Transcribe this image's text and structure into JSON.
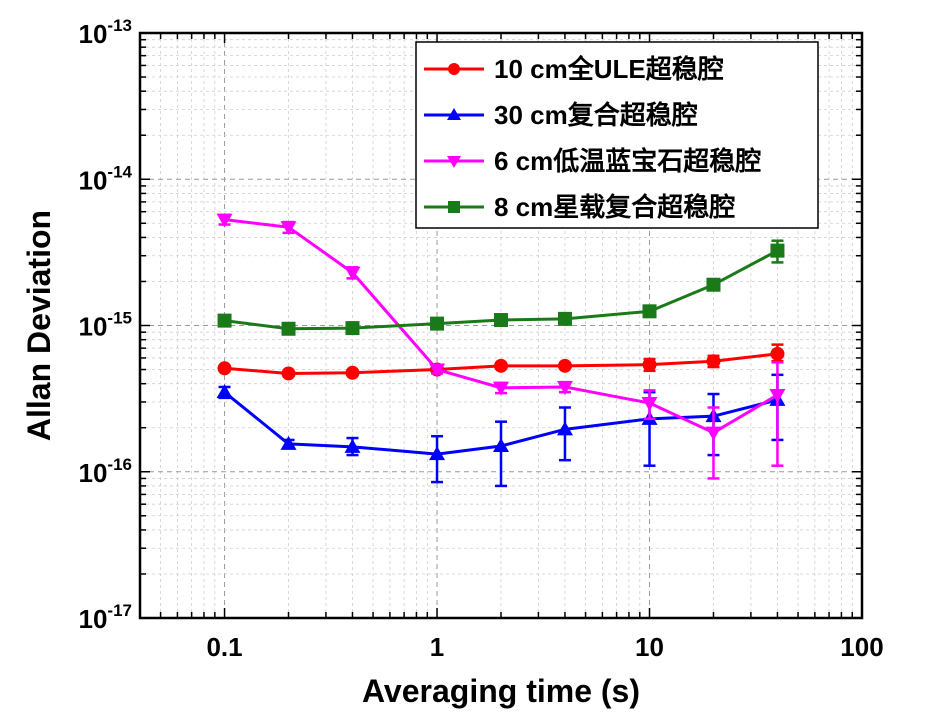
{
  "chart_data": {
    "type": "line",
    "xlabel": "Averaging time (s)",
    "ylabel": "Allan Deviation",
    "xscale": "log",
    "yscale": "log",
    "xlim": [
      0.04,
      100
    ],
    "ylim": [
      1e-17,
      1e-13
    ],
    "grid": true,
    "legend_position": "top-right",
    "x_ticks": [
      {
        "value": 0.1,
        "label": "0.1"
      },
      {
        "value": 1,
        "label": "1"
      },
      {
        "value": 10,
        "label": "10"
      },
      {
        "value": 100,
        "label": "100"
      }
    ],
    "y_ticks": [
      {
        "value": 1e-17,
        "base": "10",
        "exp": "-17"
      },
      {
        "value": 1e-16,
        "base": "10",
        "exp": "-16"
      },
      {
        "value": 1e-15,
        "base": "10",
        "exp": "-15"
      },
      {
        "value": 1e-14,
        "base": "10",
        "exp": "-14"
      },
      {
        "value": 1e-13,
        "base": "10",
        "exp": "-13"
      }
    ],
    "series": [
      {
        "name": "10 cm全ULE超稳腔",
        "color": "#ff0000",
        "marker": "circle",
        "x": [
          0.1,
          0.2,
          0.4,
          1,
          2,
          4,
          10,
          20,
          40
        ],
        "y": [
          5.1e-16,
          4.7e-16,
          4.75e-16,
          5e-16,
          5.3e-16,
          5.3e-16,
          5.4e-16,
          5.7e-16,
          6.4e-16
        ],
        "err_low": [
          5e-16,
          4.6e-16,
          4.65e-16,
          4.9e-16,
          5.1e-16,
          5.1e-16,
          4.9e-16,
          5.2e-16,
          5.7e-16
        ],
        "err_high": [
          5.2e-16,
          4.8e-16,
          4.85e-16,
          5.1e-16,
          5.5e-16,
          5.5e-16,
          5.9e-16,
          6.2e-16,
          7.4e-16
        ]
      },
      {
        "name": "30 cm复合超稳腔",
        "color": "#0000ff",
        "marker": "triangle-up",
        "x": [
          0.1,
          0.2,
          0.4,
          1,
          2,
          4,
          10,
          20,
          40
        ],
        "y": [
          3.5e-16,
          1.55e-16,
          1.48e-16,
          1.32e-16,
          1.5e-16,
          1.95e-16,
          2.3e-16,
          2.4e-16,
          3.1e-16
        ],
        "err_low": [
          3.2e-16,
          1.45e-16,
          1.3e-16,
          8.5e-17,
          8e-17,
          1.2e-16,
          1.1e-16,
          1.3e-16,
          1.65e-16
        ],
        "err_high": [
          3.8e-16,
          1.65e-16,
          1.7e-16,
          1.75e-16,
          2.2e-16,
          2.75e-16,
          3.5e-16,
          3.4e-16,
          4.6e-16
        ]
      },
      {
        "name": "6 cm低温蓝宝石超稳腔",
        "color": "#ff00ff",
        "marker": "triangle-down",
        "x": [
          0.1,
          0.2,
          0.4,
          1,
          2,
          4,
          10,
          20,
          40
        ],
        "y": [
          5.3e-15,
          4.7e-15,
          2.3e-15,
          5e-16,
          3.75e-16,
          3.8e-16,
          2.95e-16,
          1.85e-16,
          3.35e-16
        ],
        "err_low": [
          4.9e-15,
          4.3e-15,
          2.1e-15,
          4.7e-16,
          3.45e-16,
          3.5e-16,
          2.3e-16,
          9e-17,
          1.1e-16
        ],
        "err_high": [
          5.7e-15,
          5.1e-15,
          2.5e-15,
          5.3e-16,
          4.05e-16,
          4.1e-16,
          3.6e-16,
          2.75e-16,
          5.6e-16
        ]
      },
      {
        "name": "8 cm星载复合超稳腔",
        "color": "#1a7a1a",
        "marker": "square",
        "x": [
          0.1,
          0.2,
          0.4,
          1,
          2,
          4,
          10,
          20,
          40
        ],
        "y": [
          1.08e-15,
          9.5e-16,
          9.6e-16,
          1.03e-15,
          1.09e-15,
          1.11e-15,
          1.25e-15,
          1.9e-15,
          3.25e-15
        ],
        "err_low": [
          1.03e-15,
          9.1e-16,
          9.2e-16,
          9.9e-16,
          1.05e-15,
          1.06e-15,
          1.19e-15,
          1.75e-15,
          2.7e-15
        ],
        "err_high": [
          1.13e-15,
          9.9e-16,
          1e-15,
          1.07e-15,
          1.13e-15,
          1.16e-15,
          1.31e-15,
          2.05e-15,
          3.8e-15
        ]
      }
    ]
  }
}
